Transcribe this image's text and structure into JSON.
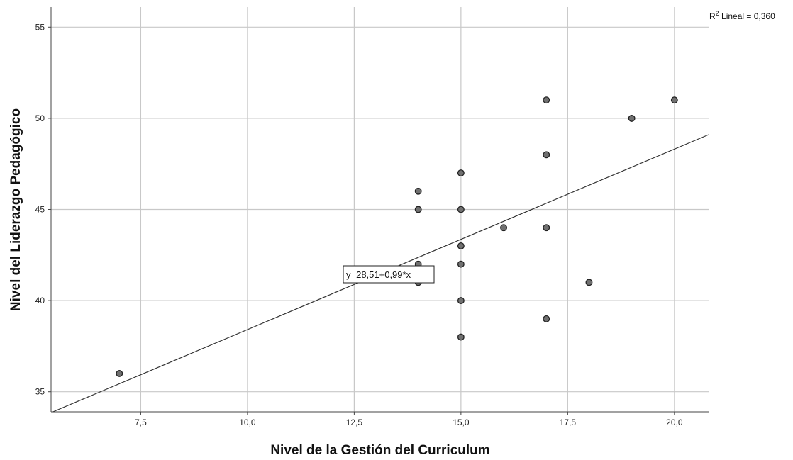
{
  "chart_data": {
    "type": "scatter",
    "title": "",
    "xlabel": "Nivel de la Gestión del Curriculum",
    "ylabel": "Nivel del Liderazgo Pedagógico",
    "xlim": [
      5.4,
      20.8
    ],
    "ylim": [
      33.9,
      56.1
    ],
    "xticks": [
      7.5,
      10.0,
      12.5,
      15.0,
      17.5,
      20.0
    ],
    "xtick_labels": [
      "7,5",
      "10,0",
      "12,5",
      "15,0",
      "17,5",
      "20,0"
    ],
    "yticks": [
      35,
      40,
      45,
      50,
      55
    ],
    "ytick_labels": [
      "35",
      "40",
      "45",
      "50",
      "55"
    ],
    "grid": true,
    "points": [
      {
        "x": 7,
        "y": 36
      },
      {
        "x": 14,
        "y": 46
      },
      {
        "x": 14,
        "y": 45
      },
      {
        "x": 14,
        "y": 42
      },
      {
        "x": 14,
        "y": 41
      },
      {
        "x": 15,
        "y": 47
      },
      {
        "x": 15,
        "y": 45
      },
      {
        "x": 15,
        "y": 43
      },
      {
        "x": 15,
        "y": 42
      },
      {
        "x": 15,
        "y": 40
      },
      {
        "x": 15,
        "y": 38
      },
      {
        "x": 16,
        "y": 44
      },
      {
        "x": 17,
        "y": 51
      },
      {
        "x": 17,
        "y": 48
      },
      {
        "x": 17,
        "y": 44
      },
      {
        "x": 17,
        "y": 39
      },
      {
        "x": 18,
        "y": 41
      },
      {
        "x": 19,
        "y": 50
      },
      {
        "x": 20,
        "y": 51
      }
    ],
    "fit_line": {
      "intercept": 28.51,
      "slope": 0.99
    },
    "fit_equation_label": "y=28,51+0,99*x",
    "r2_label": {
      "prefix": "R",
      "sup": "2",
      "text": " Lineal = 0,360"
    },
    "colors": {
      "point_fill": "#707070",
      "point_stroke": "#222222",
      "grid": "#c8c8c8",
      "line": "#333333"
    }
  }
}
